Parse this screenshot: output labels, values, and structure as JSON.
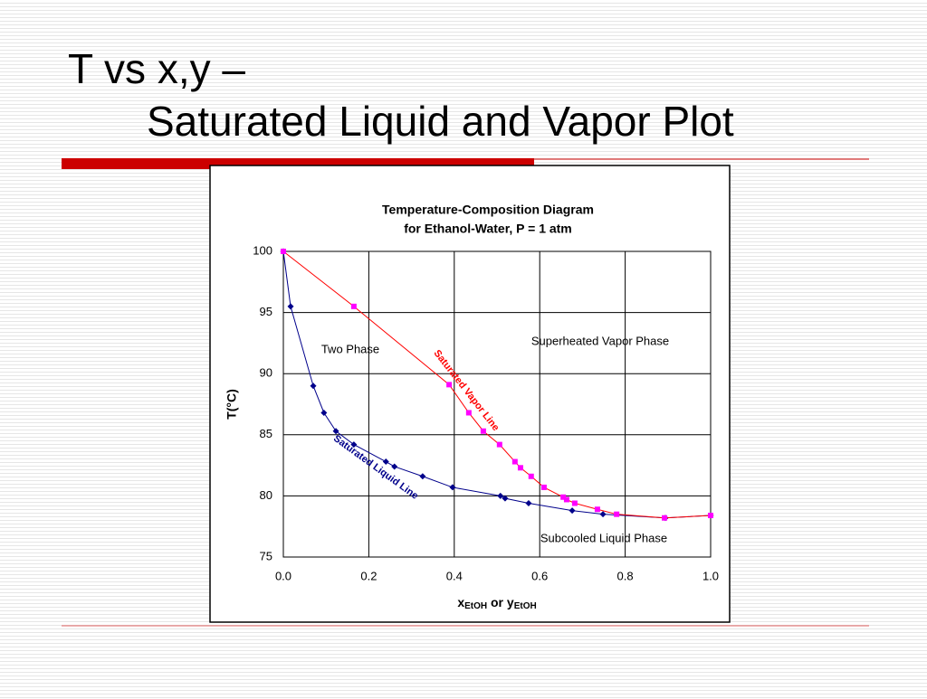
{
  "slide_title": [
    "T vs x,y –",
    "Saturated Liquid and Vapor Plot"
  ],
  "chart_data": {
    "type": "line",
    "title": [
      "Temperature-Composition Diagram",
      "for Ethanol-Water, P = 1 atm"
    ],
    "ylabel": "T(°C)",
    "xlabel_parts": [
      "x",
      "EtOH",
      " or y",
      "EtOH"
    ],
    "xlim": [
      0,
      1
    ],
    "ylim": [
      75,
      100
    ],
    "xticks": [
      {
        "value": 0,
        "label": "0.0"
      },
      0.2,
      0.4,
      0.6,
      0.8,
      {
        "value": 1,
        "label": "1.0"
      }
    ],
    "yticks": [
      75,
      80,
      85,
      90,
      95,
      100
    ],
    "grid": true,
    "series": [
      {
        "name": "Saturated Liquid Line",
        "color": "#00008b",
        "marker": "diamond",
        "x": [
          0,
          0.017,
          0.07,
          0.095,
          0.123,
          0.165,
          0.24,
          0.26,
          0.326,
          0.396,
          0.508,
          0.519,
          0.574,
          0.676,
          0.748,
          0.894,
          1.0
        ],
        "values": [
          100,
          95.5,
          89.0,
          86.8,
          85.3,
          84.2,
          82.8,
          82.4,
          81.6,
          80.7,
          80.0,
          79.8,
          79.4,
          78.8,
          78.5,
          78.2,
          78.4
        ]
      },
      {
        "name": "Saturated Vapor Line",
        "color": "#ff0000",
        "marker_color": "#ff00ff",
        "marker": "square",
        "x": [
          0,
          0.165,
          0.388,
          0.434,
          0.468,
          0.506,
          0.542,
          0.555,
          0.58,
          0.61,
          0.655,
          0.663,
          0.682,
          0.735,
          0.78,
          0.892,
          1.0
        ],
        "values": [
          100,
          95.5,
          89.1,
          86.8,
          85.3,
          84.2,
          82.8,
          82.3,
          81.6,
          80.7,
          79.9,
          79.7,
          79.4,
          78.9,
          78.5,
          78.2,
          78.4
        ]
      }
    ],
    "annotations": [
      "Two Phase",
      "Superheated Vapor Phase",
      "Subcooled Liquid Phase"
    ]
  }
}
